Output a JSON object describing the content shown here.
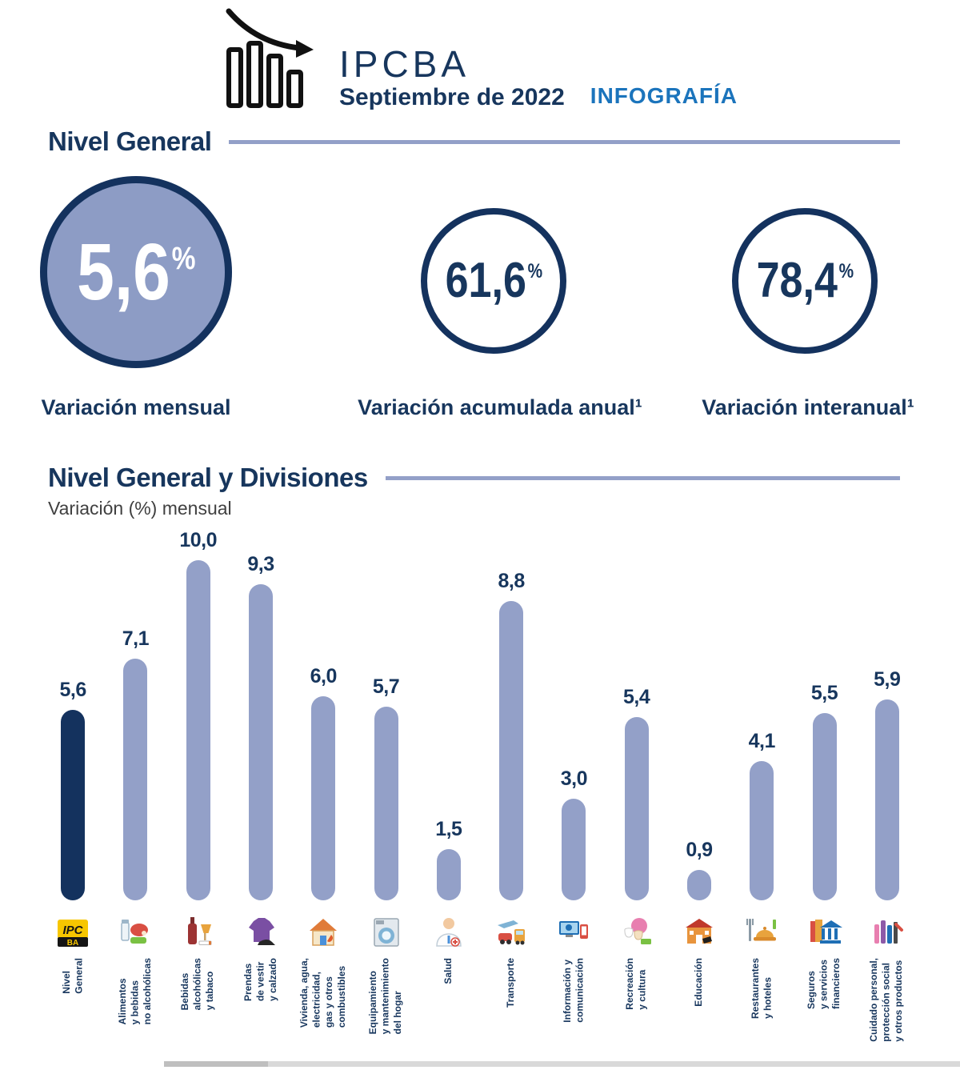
{
  "colors": {
    "navy": "#17365d",
    "dark_bar": "#14325e",
    "periwinkle": "#93a0c8",
    "circle_fill": "#8d9cc5",
    "tag_blue": "#1b74bc",
    "subtitle_gray": "#404040"
  },
  "header": {
    "title": "IPCBA",
    "period": "Septiembre de 2022",
    "tag": "INFOGRAFÍA",
    "logo_icon": "declining-bar-chart-icon"
  },
  "nivel_general": {
    "section_title": "Nivel General",
    "stats": [
      {
        "value": "5,6",
        "unit": "%",
        "label": "Variación mensual"
      },
      {
        "value": "61,6",
        "unit": "%",
        "label": "Variación acumulada anual¹"
      },
      {
        "value": "78,4",
        "unit": "%",
        "label": "Variación interanual¹"
      }
    ]
  },
  "divisions_section": {
    "title": "Nivel General y Divisiones",
    "subtitle": "Variación (%) mensual"
  },
  "chart_data": {
    "type": "bar",
    "title": "Nivel General y Divisiones",
    "subtitle": "Variación (%) mensual",
    "ylabel": "Variación (%) mensual",
    "ylim": [
      0,
      10
    ],
    "grid": false,
    "legend": "none",
    "highlight_index": 0,
    "bar_color": "#93a0c8",
    "highlight_color": "#14325e",
    "categories": [
      "Nivel\nGeneral",
      "Alimentos\ny bebidas\nno alcohólicas",
      "Bebidas\nalcohólicas\ny tabaco",
      "Prendas\nde vestir\ny calzado",
      "Vivienda, agua,\nelectricidad,\ngas y otros\ncombustibles",
      "Equipamiento\ny mantenimiento\ndel hogar",
      "Salud",
      "Transporte",
      "Información y\ncomunicación",
      "Recreación\ny cultura",
      "Educación",
      "Restaurantes\ny hoteles",
      "Seguros\ny servicios\nfinancieros",
      "Cuidado personal,\nprotección social\ny otros productos"
    ],
    "values": [
      5.6,
      7.1,
      10.0,
      9.3,
      6.0,
      5.7,
      1.5,
      8.8,
      3.0,
      5.4,
      0.9,
      4.1,
      5.5,
      5.9
    ],
    "value_labels": [
      "5,6",
      "7,1",
      "10,0",
      "9,3",
      "6,0",
      "5,7",
      "1,5",
      "8,8",
      "3,0",
      "5,4",
      "0,9",
      "4,1",
      "5,5",
      "5,9"
    ],
    "icons": [
      "ipc-ba-logo-icon",
      "food-beverages-icon",
      "alcohol-tobacco-icon",
      "clothing-footwear-icon",
      "housing-utilities-icon",
      "home-equipment-icon",
      "health-icon",
      "transport-icon",
      "information-communication-icon",
      "recreation-culture-icon",
      "education-icon",
      "restaurants-hotels-icon",
      "insurance-financial-icon",
      "personal-care-icon"
    ]
  }
}
